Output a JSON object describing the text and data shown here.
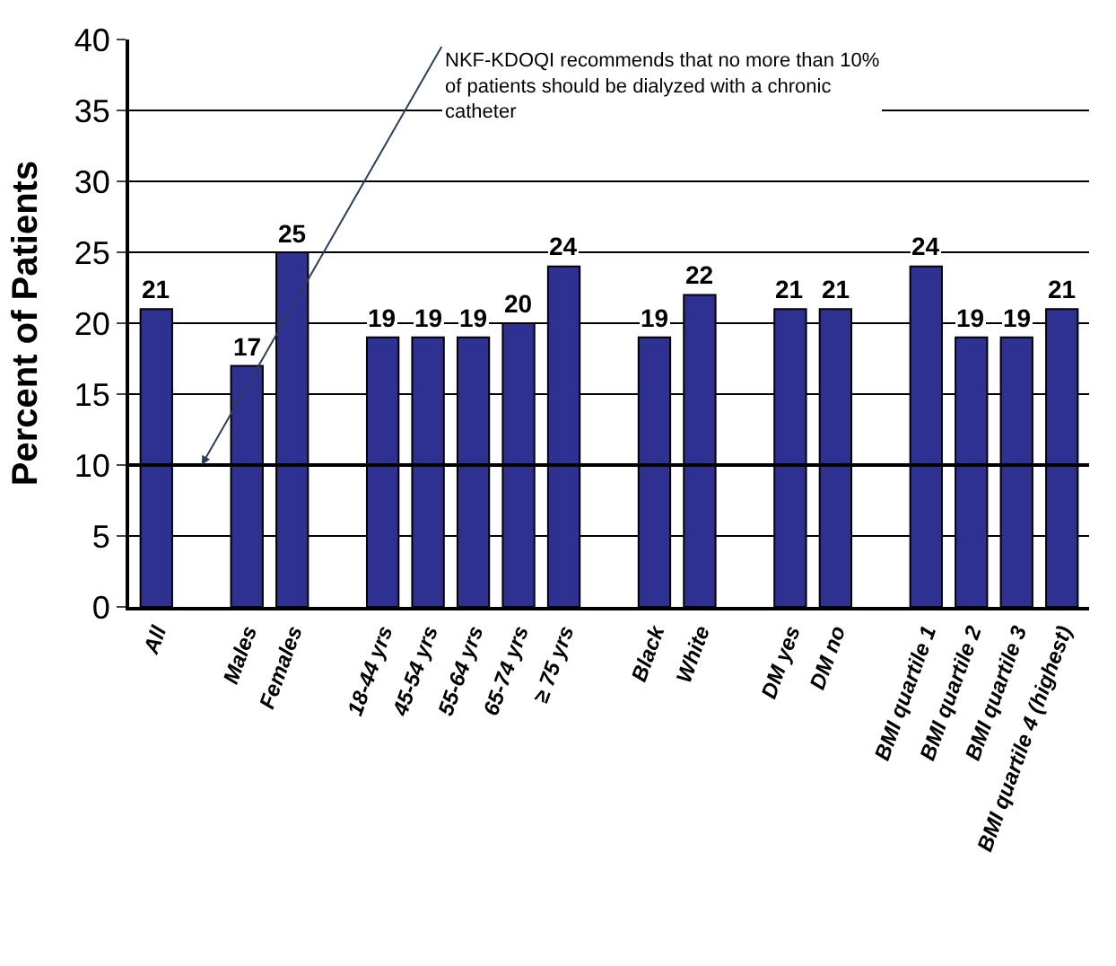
{
  "chart_data": {
    "type": "bar",
    "ylabel": "Percent of Patients",
    "categories": [
      "All",
      null,
      "Males",
      "Females",
      null,
      "18-44 yrs",
      "45-54 yrs",
      "55-64 yrs",
      "65-74 yrs",
      "≥ 75 yrs",
      null,
      "Black",
      "White",
      null,
      "DM yes",
      "DM no",
      null,
      "BMI quartile 1",
      "BMI quartile 2",
      "BMI quartile 3",
      "BMI quartile 4 (highest)"
    ],
    "values": [
      21,
      null,
      17,
      25,
      null,
      19,
      19,
      19,
      20,
      24,
      null,
      19,
      22,
      null,
      21,
      21,
      null,
      24,
      19,
      19,
      21
    ],
    "color": "#2e3192",
    "data_labels": true,
    "ylim": [
      0,
      40
    ],
    "yticks": [
      0,
      5,
      10,
      15,
      20,
      25,
      30,
      35,
      40
    ],
    "grid": "y",
    "ref_lines": [
      {
        "axis": "y",
        "value": 10,
        "color": "#000000"
      }
    ],
    "annotations": [
      "NKF-KDOQI recommends that no more than 10%\nof patients should be dialyzed with a chronic\ncatheter"
    ]
  }
}
